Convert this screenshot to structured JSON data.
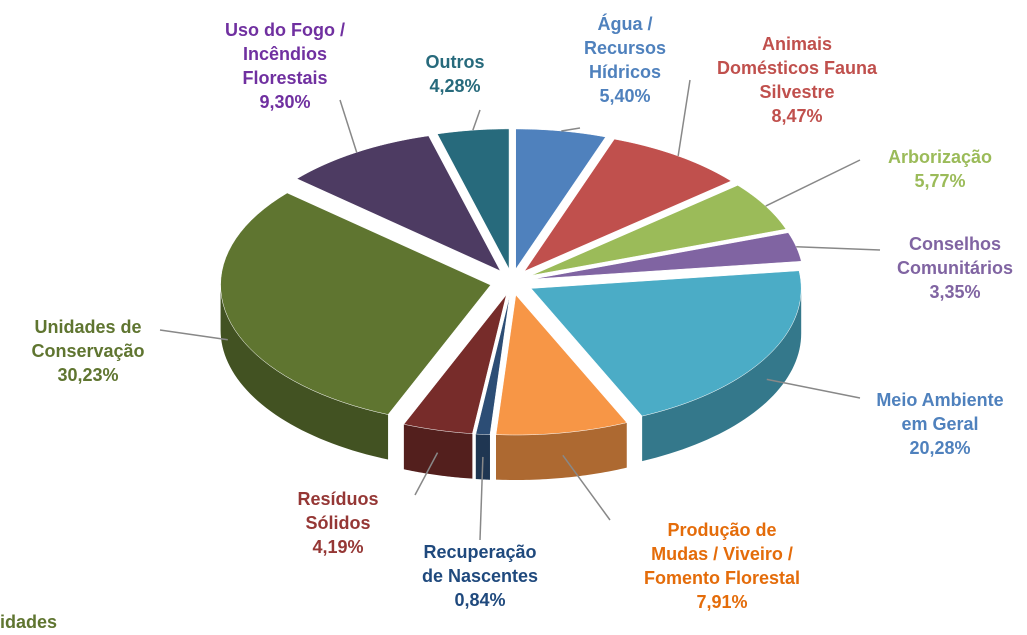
{
  "chart_data": {
    "type": "pie",
    "categories": [
      "Água /\nRecursos\nHídricos",
      "Animais\nDomésticos Fauna\nSilvestre",
      "Arborização",
      "Conselhos\nComunitários",
      "Meio Ambiente\nem Geral",
      "Produção de\nMudas / Viveiro /\nFomento Florestal",
      "Recuperação\nde Nascentes",
      "Resíduos\nSólidos",
      "Unidades de\nConservação",
      "Uso do Fogo /\nIncêndios\nFlorestais",
      "Outros"
    ],
    "values": [
      5.4,
      8.47,
      5.77,
      3.35,
      20.28,
      7.91,
      0.84,
      4.19,
      30.23,
      9.3,
      4.28
    ],
    "value_labels": [
      "5,40%",
      "8,47%",
      "5,77%",
      "3,35%",
      "20,28%",
      "7,91%",
      "0,84%",
      "4,19%",
      "30,23%",
      "9,30%",
      "4,28%"
    ],
    "colors": [
      "#4f81bd",
      "#c0504d",
      "#9bbb59",
      "#8064a2",
      "#4bacc6",
      "#f79646",
      "#2c4d75",
      "#772c2a",
      "#5f7530",
      "#4d3b62",
      "#276a7c"
    ],
    "label_colors": [
      "#4f81bd",
      "#c0504d",
      "#9bbb59",
      "#8064a2",
      "#4f81bd",
      "#e46c0a",
      "#1f497d",
      "#953735",
      "#5f7530",
      "#7030a0",
      "#276a7c"
    ],
    "legend_fragment": "idades"
  }
}
